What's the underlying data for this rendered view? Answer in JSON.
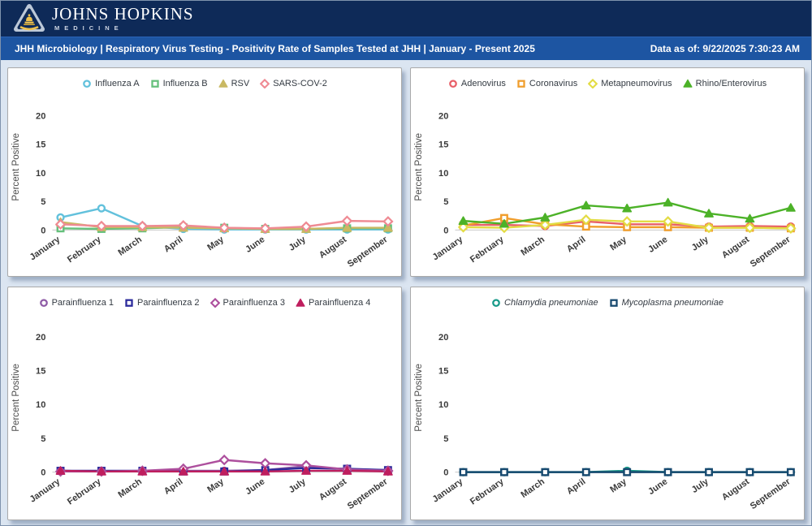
{
  "header": {
    "brand_line1": "JOHNS HOPKINS",
    "brand_line2": "MEDICINE",
    "title": "JHH Microbiology | Respiratory Virus Testing - Positivity Rate of Samples Tested at JHH | January - Present 2025",
    "data_as_of": "Data as of: 9/22/2025 7:30:23 AM"
  },
  "colors": {
    "topbar": "#0e2a58",
    "titlebar": "#1d55a2",
    "page_background": "#dbe5f1",
    "logo_shield_outer": "#bcc8d8",
    "logo_shield_inner": "#0e2a58",
    "logo_gold": "#eec24f"
  },
  "chart_data": [
    {
      "type": "line",
      "name": "respiratory-viruses",
      "ylabel": "Percent Positive",
      "ylim": [
        0,
        20
      ],
      "yticks": [
        0,
        5,
        10,
        15,
        20
      ],
      "grid": false,
      "legend_position": "top",
      "categories": [
        "January",
        "February",
        "March",
        "April",
        "May",
        "June",
        "July",
        "August",
        "September"
      ],
      "series": [
        {
          "name": "Influenza A",
          "marker": "circle",
          "color": "#62c1dc",
          "italic": false,
          "values": [
            2.2,
            3.8,
            0.7,
            0.2,
            0.1,
            0.1,
            0.1,
            0.1,
            0.1
          ]
        },
        {
          "name": "Influenza B",
          "marker": "square",
          "color": "#66c07c",
          "italic": false,
          "values": [
            0.3,
            0.2,
            0.3,
            0.5,
            0.4,
            0.2,
            0.2,
            0.3,
            0.3
          ]
        },
        {
          "name": "RSV",
          "marker": "triangle",
          "color": "#c9b963",
          "italic": false,
          "values": [
            1.4,
            0.5,
            0.5,
            0.4,
            0.3,
            0.2,
            0.2,
            0.4,
            0.4
          ]
        },
        {
          "name": "SARS-COV-2",
          "marker": "diamond",
          "color": "#ef8a93",
          "italic": false,
          "values": [
            1.0,
            0.7,
            0.7,
            0.8,
            0.4,
            0.3,
            0.6,
            1.6,
            1.5
          ]
        }
      ]
    },
    {
      "type": "line",
      "name": "other-respiratory-viruses",
      "ylabel": "Percent Positive",
      "ylim": [
        0,
        20
      ],
      "yticks": [
        0,
        5,
        10,
        15,
        20
      ],
      "grid": false,
      "legend_position": "top",
      "categories": [
        "January",
        "February",
        "March",
        "April",
        "May",
        "June",
        "July",
        "August",
        "September"
      ],
      "series": [
        {
          "name": "Adenovirus",
          "marker": "circle",
          "color": "#e85f68",
          "italic": false,
          "values": [
            0.9,
            0.9,
            0.7,
            1.5,
            1.0,
            1.0,
            0.6,
            0.7,
            0.6
          ]
        },
        {
          "name": "Coronavirus",
          "marker": "square",
          "color": "#f09e2d",
          "italic": false,
          "values": [
            0.8,
            2.1,
            1.0,
            0.6,
            0.5,
            0.5,
            0.4,
            0.4,
            0.3
          ]
        },
        {
          "name": "Metapneumovirus",
          "marker": "diamond",
          "color": "#e3dc44",
          "italic": false,
          "values": [
            0.5,
            0.4,
            0.9,
            1.8,
            1.5,
            1.5,
            0.4,
            0.4,
            0.3
          ]
        },
        {
          "name": "Rhino/Enterovirus",
          "marker": "triangle",
          "color": "#4cb228",
          "italic": false,
          "values": [
            1.6,
            1.1,
            2.2,
            4.3,
            3.8,
            4.8,
            2.9,
            2.0,
            3.9
          ]
        }
      ]
    },
    {
      "type": "line",
      "name": "parainfluenza",
      "ylabel": "Percent Positive",
      "ylim": [
        0,
        20
      ],
      "yticks": [
        0,
        5,
        10,
        15,
        20
      ],
      "grid": false,
      "legend_position": "top",
      "categories": [
        "January",
        "February",
        "March",
        "April",
        "May",
        "June",
        "July",
        "August",
        "September"
      ],
      "series": [
        {
          "name": "Parainfluenza 1",
          "marker": "circle",
          "color": "#8e5ba6",
          "italic": false,
          "values": [
            0.2,
            0.1,
            0.1,
            0.2,
            0.2,
            0.3,
            0.9,
            0.4,
            0.3
          ]
        },
        {
          "name": "Parainfluenza 2",
          "marker": "square",
          "color": "#2b2a9b",
          "italic": false,
          "values": [
            0.2,
            0.2,
            0.2,
            0.1,
            0.1,
            0.3,
            0.6,
            0.5,
            0.3
          ]
        },
        {
          "name": "Parainfluenza 3",
          "marker": "diamond",
          "color": "#ad4f9d",
          "italic": false,
          "values": [
            0.1,
            0.1,
            0.2,
            0.5,
            1.8,
            1.3,
            1.0,
            0.4,
            0.2
          ]
        },
        {
          "name": "Parainfluenza 4",
          "marker": "triangle",
          "color": "#bf1e5e",
          "italic": false,
          "values": [
            0.2,
            0.1,
            0.1,
            0.1,
            0.1,
            0.1,
            0.2,
            0.2,
            0.1
          ]
        }
      ]
    },
    {
      "type": "line",
      "name": "atypical-pneumonia",
      "ylabel": "Percent Positive",
      "ylim": [
        0,
        20
      ],
      "yticks": [
        0,
        5,
        10,
        15,
        20
      ],
      "grid": false,
      "legend_position": "top",
      "categories": [
        "January",
        "February",
        "March",
        "April",
        "May",
        "June",
        "July",
        "August",
        "September"
      ],
      "series": [
        {
          "name": "Chlamydia pneumoniae",
          "marker": "circle",
          "color": "#189a89",
          "italic": true,
          "values": [
            0,
            0,
            0,
            0,
            0.2,
            0,
            0,
            0,
            0
          ]
        },
        {
          "name": "Mycoplasma pneumoniae",
          "marker": "square",
          "color": "#17496f",
          "italic": true,
          "values": [
            0,
            0,
            0,
            0,
            0,
            0,
            0,
            0,
            0
          ]
        }
      ]
    }
  ]
}
